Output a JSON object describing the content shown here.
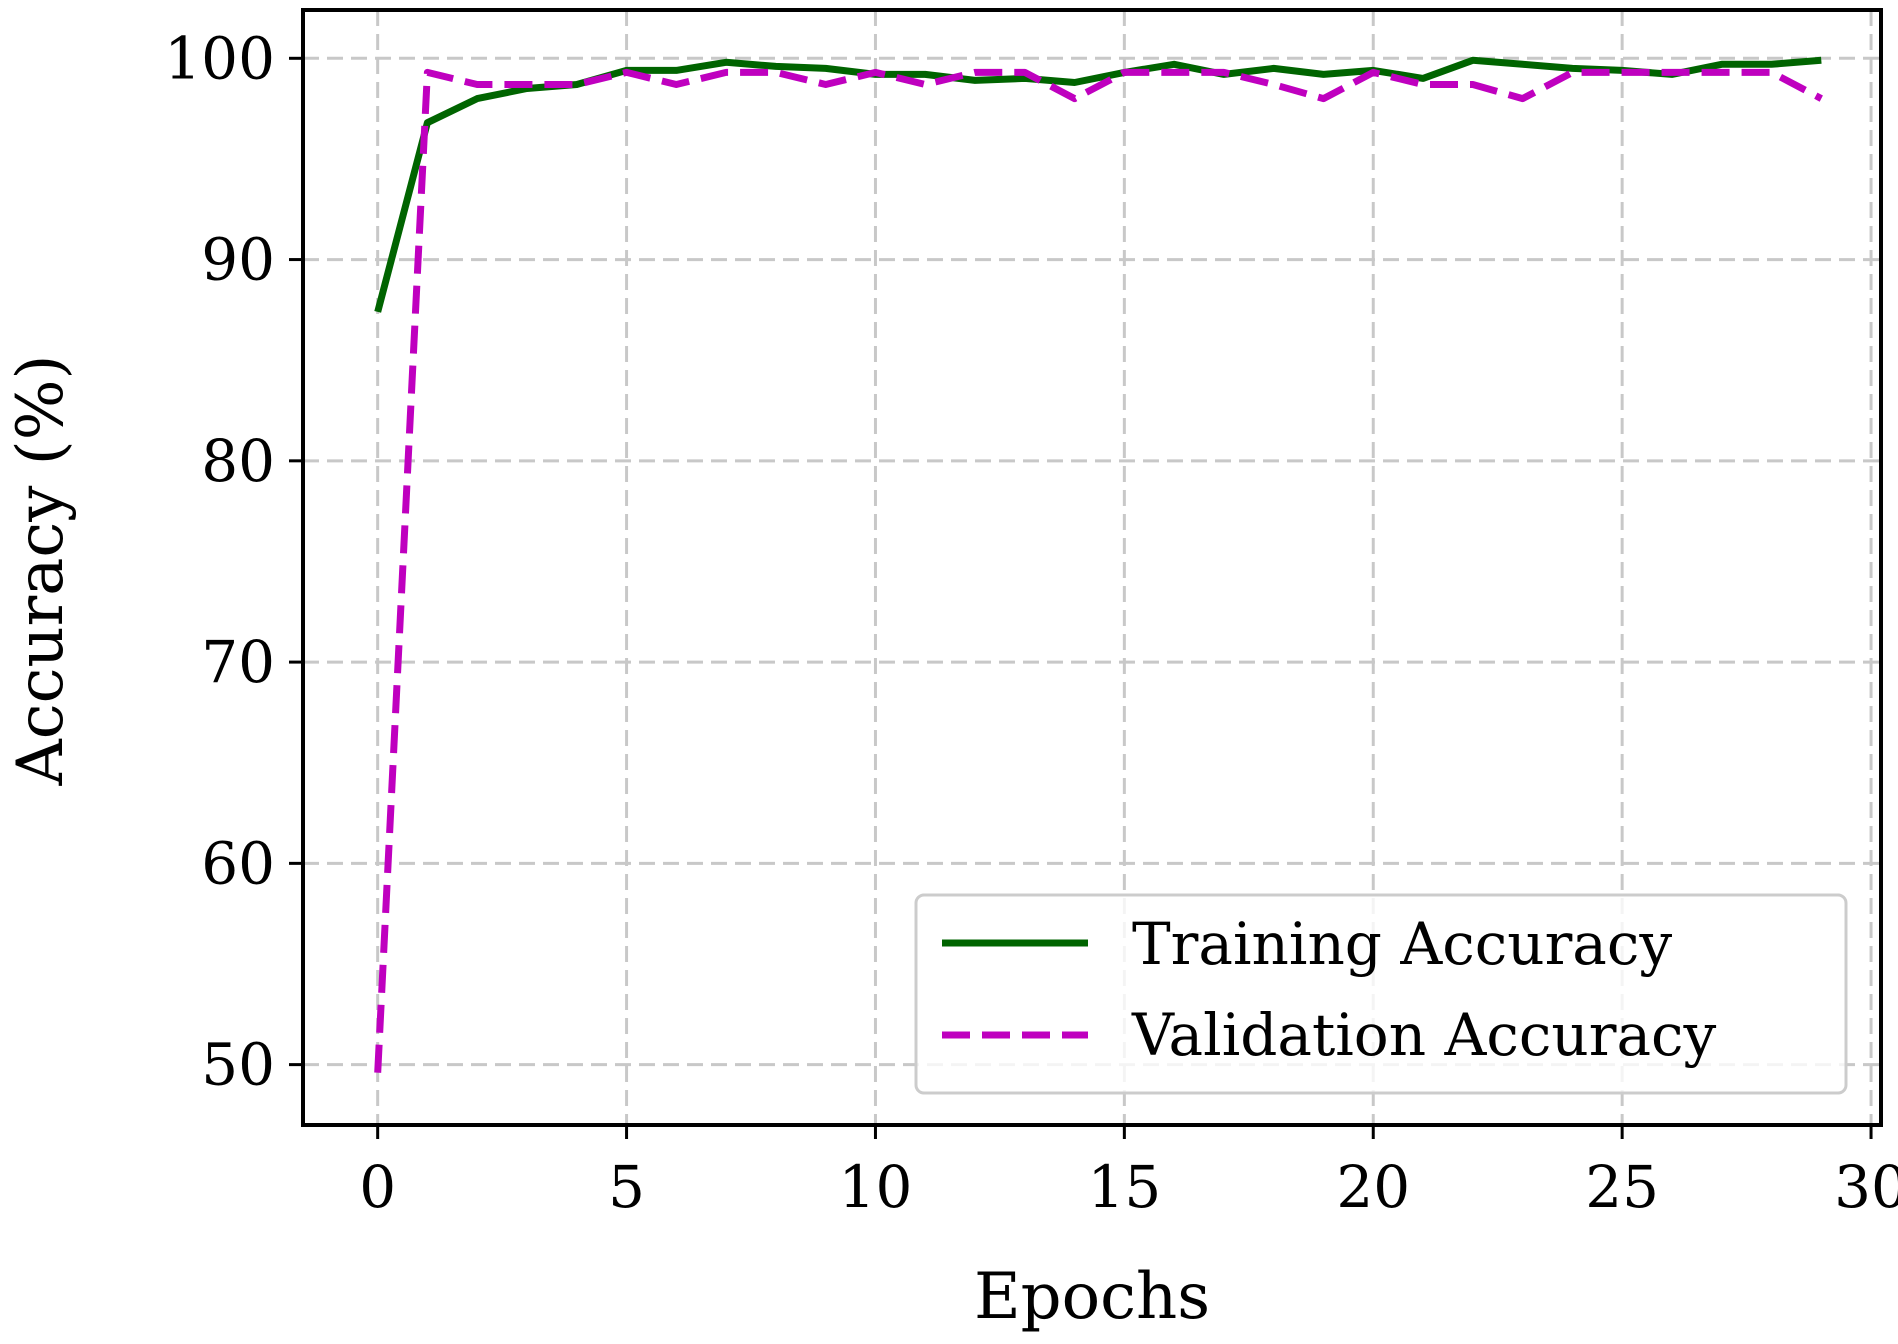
{
  "chart_data": {
    "type": "line",
    "title": "",
    "xlabel": "Epochs",
    "ylabel": "Accuracy (%)",
    "xlim": [
      -1.5,
      30.2
    ],
    "ylim": [
      47.0,
      102.4
    ],
    "xticks": [
      0,
      5,
      10,
      15,
      20,
      25,
      30
    ],
    "yticks": [
      50,
      60,
      70,
      80,
      90,
      100
    ],
    "grid": true,
    "legend_position": "lower-right",
    "x": [
      0,
      1,
      2,
      3,
      4,
      5,
      6,
      7,
      8,
      9,
      10,
      11,
      12,
      13,
      14,
      15,
      16,
      17,
      18,
      19,
      20,
      21,
      22,
      23,
      24,
      25,
      26,
      27,
      28,
      29
    ],
    "series": [
      {
        "name": "Training Accuracy",
        "color": "#006400",
        "style": "solid",
        "values": [
          87.4,
          96.8,
          98.0,
          98.5,
          98.7,
          99.4,
          99.4,
          99.8,
          99.6,
          99.5,
          99.2,
          99.2,
          98.9,
          99.0,
          98.8,
          99.3,
          99.7,
          99.2,
          99.5,
          99.2,
          99.4,
          99.0,
          99.9,
          99.7,
          99.5,
          99.4,
          99.2,
          99.7,
          99.7,
          99.9
        ]
      },
      {
        "name": "Validation Accuracy",
        "color": "#BF00BF",
        "style": "dashed",
        "values": [
          49.6,
          99.3,
          98.7,
          98.7,
          98.7,
          99.3,
          98.7,
          99.3,
          99.3,
          98.7,
          99.3,
          98.7,
          99.3,
          99.3,
          98.0,
          99.3,
          99.3,
          99.3,
          98.7,
          98.0,
          99.3,
          98.7,
          98.7,
          98.0,
          99.3,
          99.3,
          99.3,
          99.3,
          99.3,
          98.0
        ]
      }
    ]
  }
}
